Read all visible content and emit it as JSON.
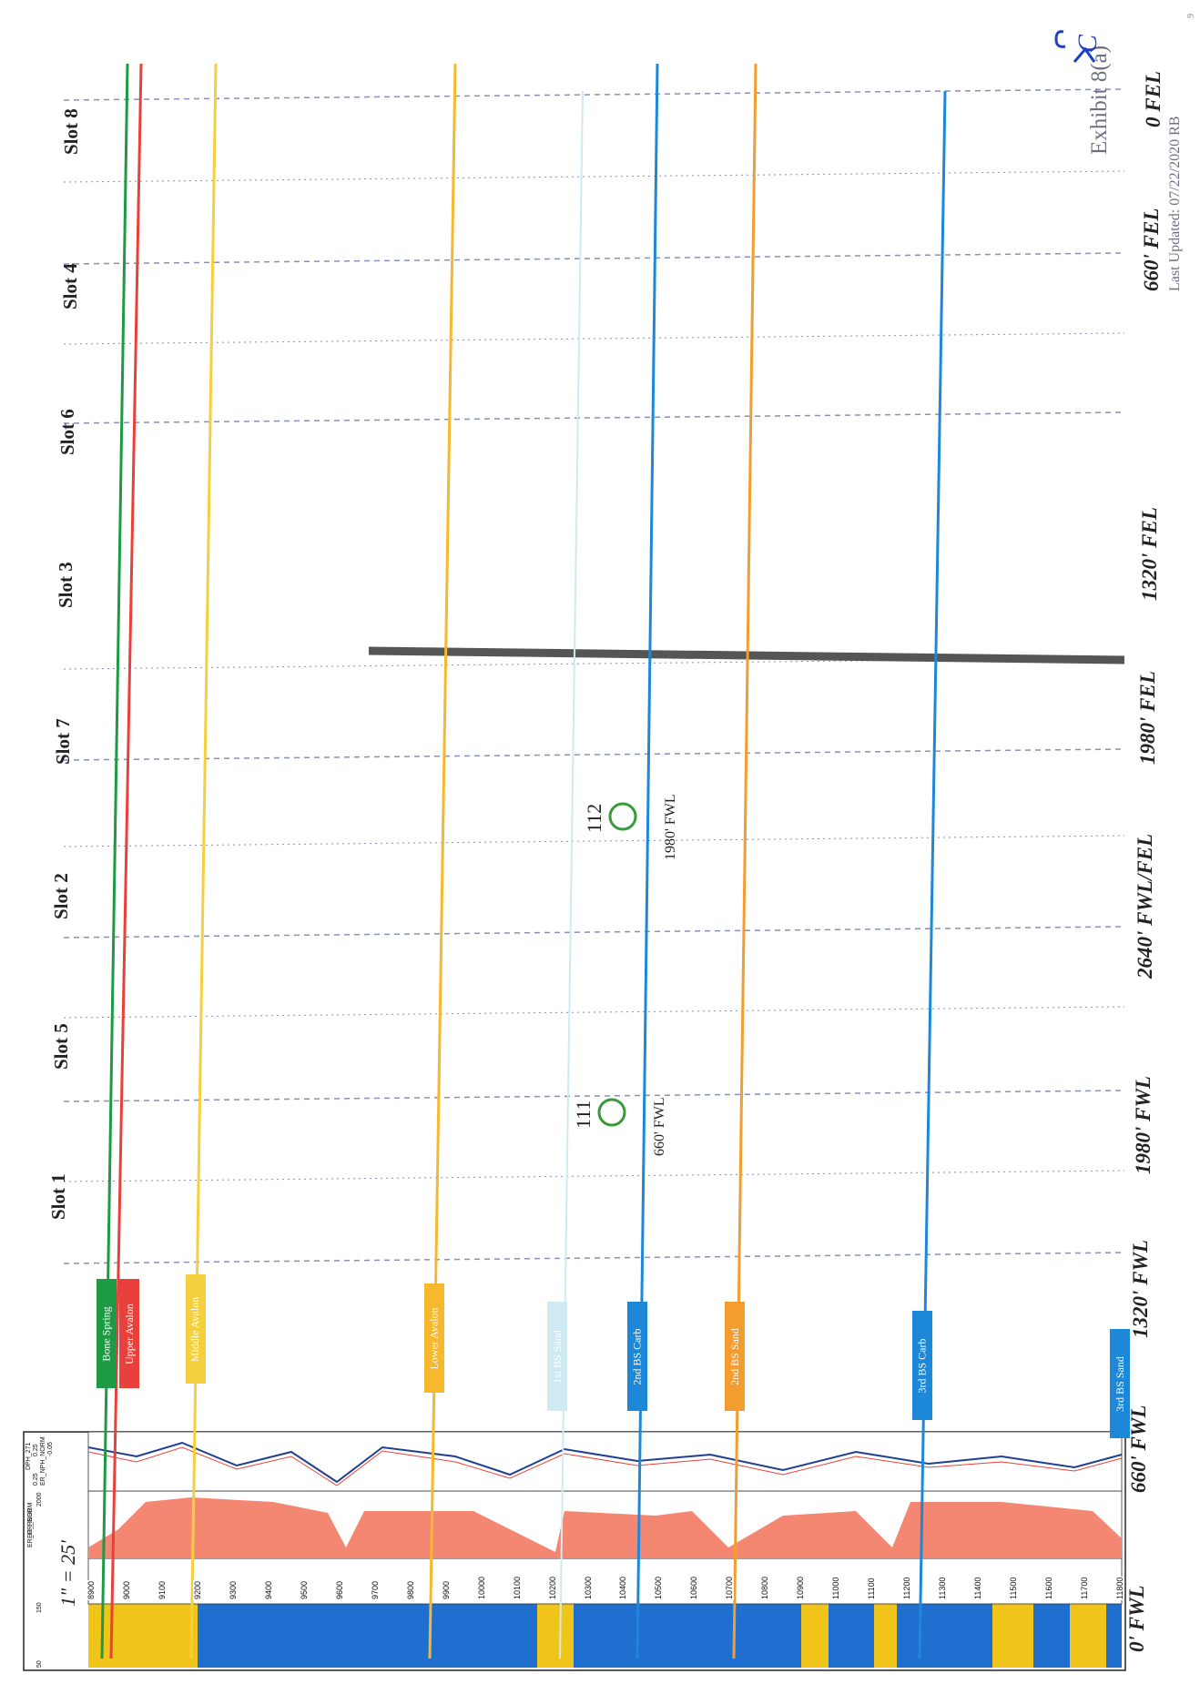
{
  "exhibit": {
    "title": "Exhibit 8(a)",
    "mark": "C",
    "updated": "Last Updated: 07/22/2020 RB",
    "page_mark": "9"
  },
  "scale_label": "1\" = 25'",
  "log_headers": [
    "ER_GR_NORM",
    "50",
    "150",
    "ER_RESD",
    "2000",
    "0.25",
    "DPH_271",
    "0.25",
    "ER_NPH_NORM",
    "-0.05"
  ],
  "depth_ticks": [
    "8900",
    "9000",
    "9100",
    "9200",
    "9300",
    "9400",
    "9500",
    "9600",
    "9700",
    "9800",
    "9900",
    "10000",
    "10100",
    "10200",
    "10300",
    "10400",
    "10500",
    "10600",
    "10700",
    "10800",
    "10900",
    "11000",
    "11100",
    "11200",
    "11300",
    "11400",
    "11500",
    "11600",
    "11700",
    "11800"
  ],
  "slots": [
    "Slot 1",
    "Slot 5",
    "Slot 2",
    "Slot 7",
    "Slot 3",
    "Slot 6",
    "Slot 4",
    "Slot 8"
  ],
  "positions": [
    "0' FWL",
    "660' FWL",
    "1320' FWL",
    "1980' FWL",
    "2640' FWL/FEL",
    "1980' FEL",
    "1320' FEL",
    "660' FEL",
    "0 FEL"
  ],
  "wells": [
    {
      "name": "111",
      "offset": "660' FWL"
    },
    {
      "name": "112",
      "offset": "1980' FWL"
    }
  ],
  "formations": [
    {
      "name": "Bone Spring",
      "color": "#1e9a44"
    },
    {
      "name": "Upper Avalon",
      "color": "#e8403a"
    },
    {
      "name": "Middle Avalon",
      "color": "#f4d03f"
    },
    {
      "name": "Lower Avalon",
      "color": "#f5b82e"
    },
    {
      "name": "1st BS Sand",
      "color": "#cfeaf2"
    },
    {
      "name": "2nd BS Carb",
      "color": "#1e88d8"
    },
    {
      "name": "2nd BS Sand",
      "color": "#f39c2f"
    },
    {
      "name": "3rd BS Carb",
      "color": "#1e88d8"
    },
    {
      "name": "3rd BS Sand",
      "color": "#1e88d8"
    }
  ]
}
